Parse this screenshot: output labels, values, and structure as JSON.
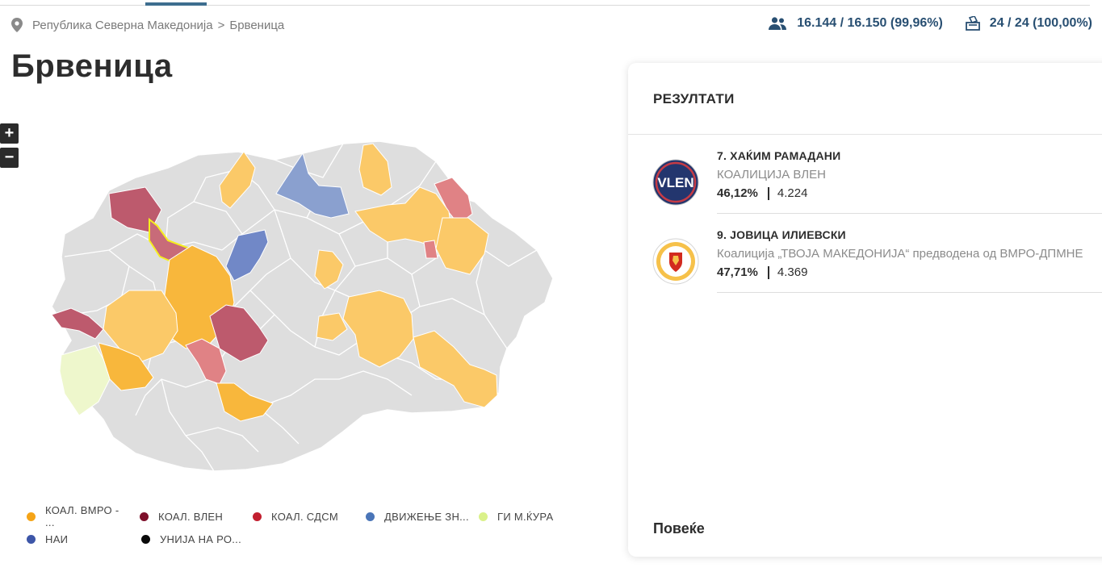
{
  "breadcrumb": {
    "country": "Република Северна Македонија",
    "separator": ">",
    "municipality": "Брвеница"
  },
  "stats": {
    "voters": "16.144 / 16.150 (99,96%)",
    "stations": "24 / 24 (100,00%)"
  },
  "title": "Брвеница",
  "zoom": {
    "in": "+",
    "out": "−"
  },
  "colors": {
    "vmro": "#f8b73c",
    "vmro_light": "#fbc968",
    "vlen": "#bd5a6d",
    "sdsm": "#e08285",
    "dvizhenje": "#8aa0cf",
    "nai": "#7188c7",
    "gi": "#eef7cc",
    "neutral": "#dedede",
    "selected_outline": "#f5ee1e"
  },
  "legend": [
    [
      {
        "label": "КОАЛ. ВМРО - ...",
        "color": "#f5a417"
      },
      {
        "label": "КОАЛ. ВЛЕН",
        "color": "#7d0f2a"
      },
      {
        "label": "КОАЛ. СДСМ",
        "color": "#c21f2f"
      },
      {
        "label": "ДВИЖЕЊЕ ЗН...",
        "color": "#4a75b8"
      },
      {
        "label": "ГИ М.ЌУРА",
        "color": "#daf18a"
      }
    ],
    [
      {
        "label": "НАИ",
        "color": "#3d56a8"
      },
      {
        "label": "УНИЈА НА РО...",
        "color": "#0a0a0a"
      }
    ]
  ],
  "panel": {
    "title": "РЕЗУЛТАТИ",
    "results": [
      {
        "name": "7. ХАЌИМ РАМАДАНИ",
        "party": "КОАЛИЦИЈА ВЛЕН",
        "percent": "46,12%",
        "votes": "4.224",
        "logo": "vlen-logo",
        "logo_text": "VLEN"
      },
      {
        "name": "9. ЈОВИЦА ИЛИЕВСКИ",
        "party": "Коалиција „ТВОЈА МАКЕДОНИЈА“ предводена од ВМРО-ДПМНЕ",
        "percent": "47,71%",
        "votes": "4.369",
        "logo": "vmro-logo"
      }
    ],
    "more": "Повеќе"
  }
}
